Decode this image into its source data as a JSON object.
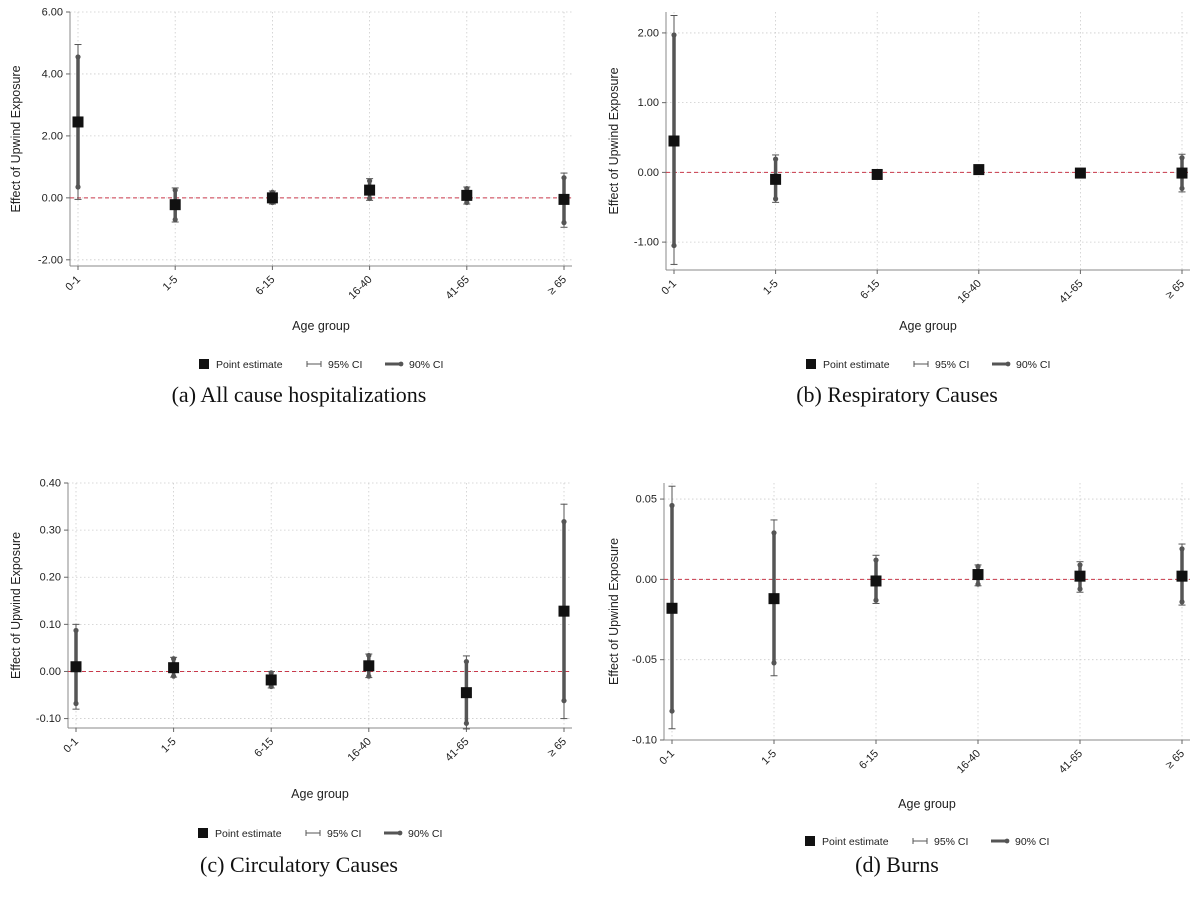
{
  "colors": {
    "point": "#111111",
    "ci95": "#555555",
    "ci90": "#555555",
    "zero_line": "#c9384a",
    "grid": "#cccccc"
  },
  "chart_data": [
    {
      "type": "scatter",
      "caption": "(a) All cause hospitalizations",
      "xlabel": "Age group",
      "ylabel": "Effect of Upwind Exposure",
      "categories": [
        "0-1",
        "1-5",
        "6-15",
        "16-40",
        "41-65",
        "≥ 65"
      ],
      "ylim": [
        -2.2,
        6.0
      ],
      "yticks": [
        -2.0,
        0.0,
        2.0,
        4.0,
        6.0
      ],
      "ytick_labels": [
        "-2.00",
        "0.00",
        "2.00",
        "4.00",
        "6.00"
      ],
      "point_estimate": [
        2.45,
        -0.22,
        0.0,
        0.25,
        0.08,
        -0.05
      ],
      "ci95_low": [
        -0.05,
        -0.78,
        -0.2,
        -0.08,
        -0.2,
        -0.95
      ],
      "ci95_high": [
        4.95,
        0.32,
        0.22,
        0.62,
        0.35,
        0.8
      ],
      "ci90_low": [
        0.35,
        -0.7,
        -0.15,
        -0.02,
        -0.15,
        -0.8
      ],
      "ci90_high": [
        4.55,
        0.25,
        0.18,
        0.55,
        0.3,
        0.65
      ],
      "legend": [
        "Point estimate",
        "95% CI",
        "90% CI"
      ]
    },
    {
      "type": "scatter",
      "caption": "(b) Respiratory Causes",
      "xlabel": "Age group",
      "ylabel": "Effect of Upwind Exposure",
      "categories": [
        "0-1",
        "1-5",
        "6-15",
        "16-40",
        "41-65",
        "≥ 65"
      ],
      "ylim": [
        -1.4,
        2.3
      ],
      "yticks": [
        -1.0,
        0.0,
        1.0,
        2.0
      ],
      "ytick_labels": [
        "-1.00",
        "0.00",
        "1.00",
        "2.00"
      ],
      "point_estimate": [
        0.45,
        -0.1,
        -0.03,
        0.04,
        -0.01,
        -0.01
      ],
      "ci95_low": [
        -1.32,
        -0.43,
        -0.06,
        0.02,
        -0.02,
        -0.28
      ],
      "ci95_high": [
        2.25,
        0.25,
        0.02,
        0.06,
        0.0,
        0.26
      ],
      "ci90_low": [
        -1.05,
        -0.38,
        -0.05,
        0.02,
        -0.02,
        -0.23
      ],
      "ci90_high": [
        1.97,
        0.19,
        0.01,
        0.06,
        0.0,
        0.21
      ],
      "legend": [
        "Point estimate",
        "95% CI",
        "90% CI"
      ]
    },
    {
      "type": "scatter",
      "caption": "(c) Circulatory Causes",
      "xlabel": "Age group",
      "ylabel": "Effect of Upwind Exposure",
      "categories": [
        "0-1",
        "1-5",
        "6-15",
        "16-40",
        "41-65",
        "≥ 65"
      ],
      "ylim": [
        -0.12,
        0.4
      ],
      "yticks": [
        -0.1,
        0.0,
        0.1,
        0.2,
        0.3,
        0.4
      ],
      "ytick_labels": [
        "-0.10",
        "0.00",
        "0.10",
        "0.20",
        "0.30",
        "0.40"
      ],
      "point_estimate": [
        0.01,
        0.008,
        -0.018,
        0.012,
        -0.045,
        0.128
      ],
      "ci95_low": [
        -0.08,
        -0.012,
        -0.035,
        -0.013,
        -0.122,
        -0.1
      ],
      "ci95_high": [
        0.1,
        0.03,
        0.0,
        0.037,
        0.033,
        0.355
      ],
      "ci90_low": [
        -0.068,
        -0.01,
        -0.032,
        -0.01,
        -0.11,
        -0.062
      ],
      "ci90_high": [
        0.087,
        0.027,
        -0.003,
        0.034,
        0.021,
        0.318
      ],
      "legend": [
        "Point estimate",
        "95% CI",
        "90% CI"
      ]
    },
    {
      "type": "scatter",
      "caption": "(d) Burns",
      "xlabel": "Age group",
      "ylabel": "Effect of Upwind Exposure",
      "categories": [
        "0-1",
        "1-5",
        "6-15",
        "16-40",
        "41-65",
        "≥ 65"
      ],
      "ylim": [
        -0.1,
        0.06
      ],
      "yticks": [
        -0.1,
        -0.05,
        0.0,
        0.05
      ],
      "ytick_labels": [
        "-0.10",
        "-0.05",
        "0.00",
        "0.05"
      ],
      "point_estimate": [
        -0.018,
        -0.012,
        -0.001,
        0.003,
        0.002,
        0.002
      ],
      "ci95_low": [
        -0.093,
        -0.06,
        -0.015,
        -0.004,
        -0.008,
        -0.016
      ],
      "ci95_high": [
        0.058,
        0.037,
        0.015,
        0.009,
        0.011,
        0.022
      ],
      "ci90_low": [
        -0.082,
        -0.052,
        -0.013,
        -0.003,
        -0.006,
        -0.014
      ],
      "ci90_high": [
        0.046,
        0.029,
        0.012,
        0.008,
        0.009,
        0.019
      ],
      "legend": [
        "Point estimate",
        "95% CI",
        "90% CI"
      ]
    }
  ]
}
